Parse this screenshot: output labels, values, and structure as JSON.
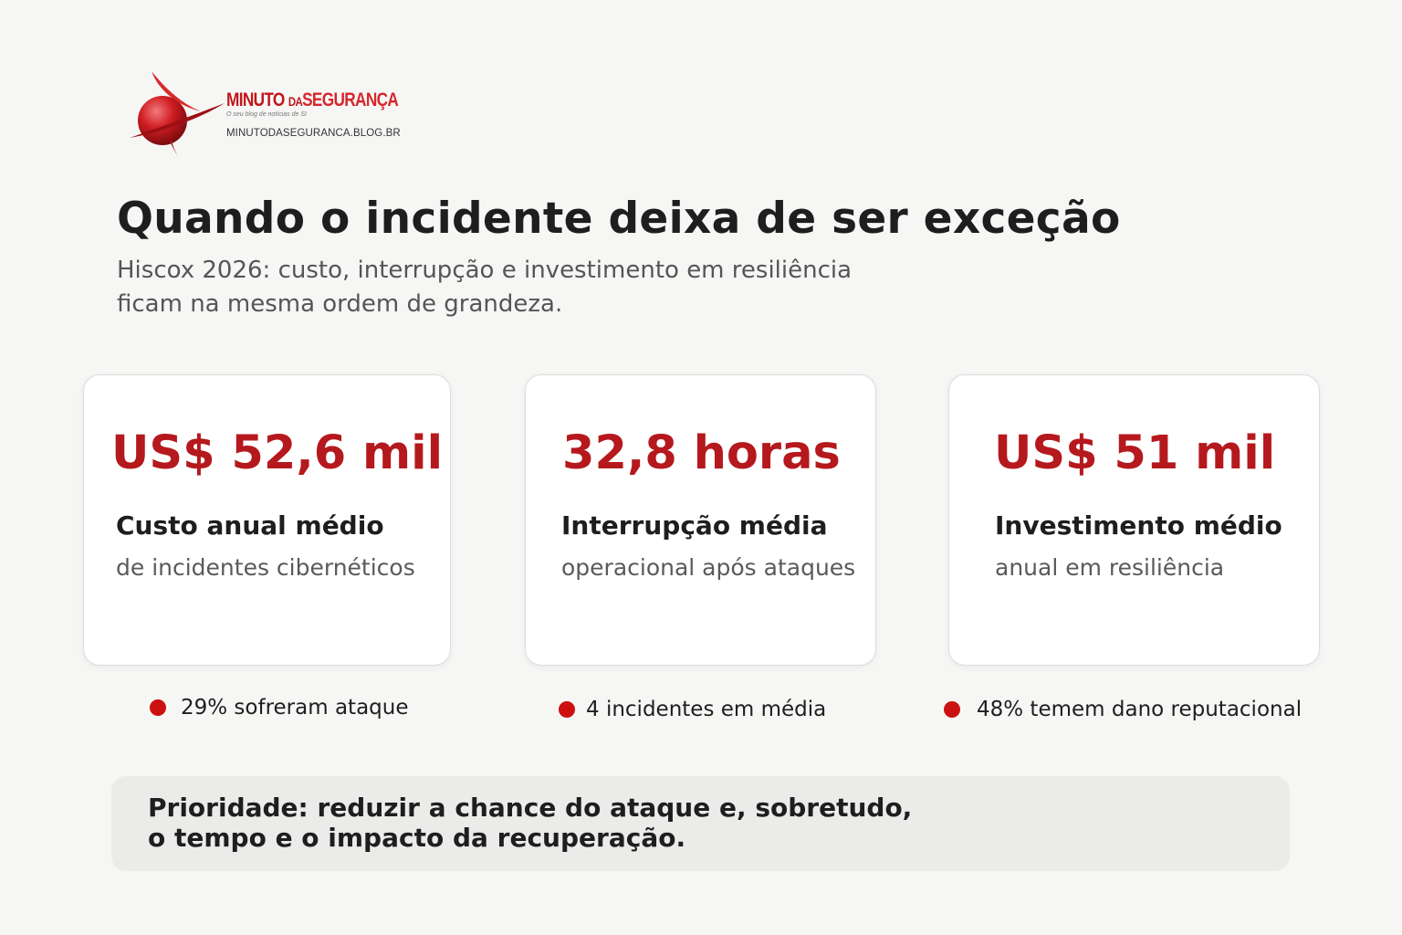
{
  "brand": {
    "name_part1": "MINUTO",
    "name_part2": "DA",
    "name_part3": "SEGURANÇA",
    "tagline": "O seu blog de notícias de SI",
    "url": "MINUTODASEGURANCA.BLOG.BR",
    "logo_icon": "red-sphere-with-orbit-icon",
    "accent_color": "#c2161b"
  },
  "header": {
    "title": "Quando o incidente deixa de ser exceção",
    "subtitle_line1": "Hiscox 2026: custo, interrupção e investimento em resiliência",
    "subtitle_line2": "ficam na mesma ordem de grandeza."
  },
  "stats": [
    {
      "value": "US$ 52,6 mil",
      "label": "Custo anual médio",
      "sub": "de incidentes cibernéticos"
    },
    {
      "value": "32,8 horas",
      "label": "Interrupção média",
      "sub": "operacional após ataques"
    },
    {
      "value": "US$ 51 mil",
      "label": "Investimento médio",
      "sub": "anual em resiliência"
    }
  ],
  "bullets": [
    {
      "text": "29% sofreram ataque"
    },
    {
      "text": "4 incidentes em média"
    },
    {
      "text": "48% temem dano reputacional"
    }
  ],
  "callout": {
    "line1": "Prioridade: reduzir a chance do ataque e, sobretudo,",
    "line2": "o tempo e o impacto da recuperação."
  },
  "colors": {
    "stat_red": "#b5191d",
    "bullet_red": "#cc1010",
    "background": "#f6f6f5",
    "callout_bg": "#ebebea"
  }
}
